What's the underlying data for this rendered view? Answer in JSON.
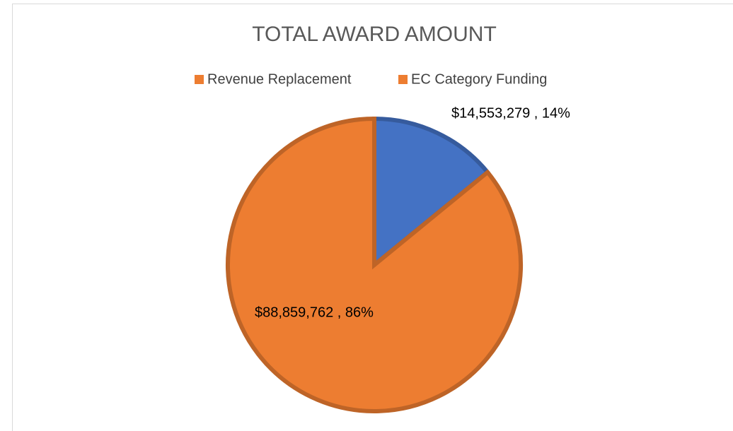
{
  "chart_data": {
    "type": "pie",
    "title": "TOTAL AWARD AMOUNT",
    "categories": [
      "Revenue Replacement",
      "EC Category Funding"
    ],
    "values": [
      14553279,
      88859762
    ],
    "value_labels": [
      "$14,553,279 , 14%",
      "$88,859,762 , 86%"
    ],
    "colors": [
      "#4472c4",
      "#ed7d31"
    ],
    "legend_colors": [
      "#ed7d31",
      "#ed7d31"
    ],
    "legend": "top"
  }
}
